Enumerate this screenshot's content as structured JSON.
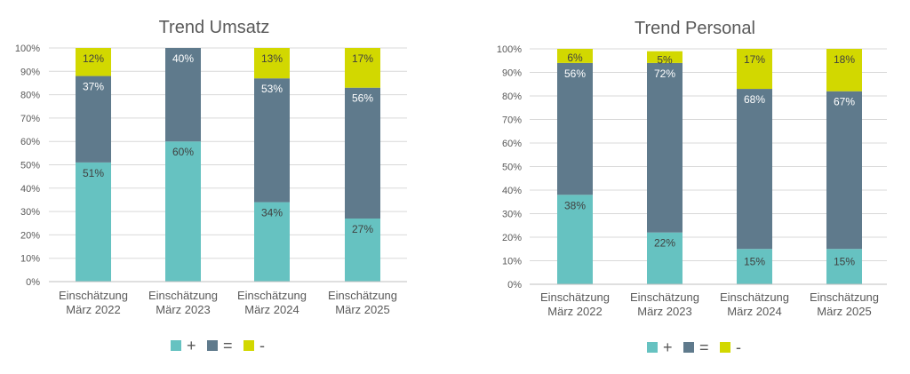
{
  "chart_data": [
    {
      "type": "bar",
      "stacked": true,
      "title": "Trend Umsatz",
      "categories": [
        [
          "Einschätzung",
          "März 2022"
        ],
        [
          "Einschätzung",
          "März 2023"
        ],
        [
          "Einschätzung",
          "März 2024"
        ],
        [
          "Einschätzung",
          "März 2025"
        ]
      ],
      "series": [
        {
          "name": "+",
          "color": "#66c2c1",
          "values": [
            51,
            60,
            34,
            27
          ]
        },
        {
          "name": "=",
          "color": "#5f7a8c",
          "values": [
            37,
            40,
            53,
            56
          ]
        },
        {
          "name": "-",
          "color": "#d2d800",
          "values": [
            12,
            0,
            13,
            17
          ]
        }
      ],
      "data_labels": [
        [
          "51%",
          "37%",
          "12%"
        ],
        [
          "60%",
          "40%",
          ""
        ],
        [
          "34%",
          "53%",
          "13%"
        ],
        [
          "27%",
          "56%",
          "17%"
        ]
      ],
      "yticks": [
        "0%",
        "10%",
        "20%",
        "30%",
        "40%",
        "50%",
        "60%",
        "70%",
        "80%",
        "90%",
        "100%"
      ],
      "ylim": [
        0,
        100
      ],
      "grid": true,
      "legend": "bottom"
    },
    {
      "type": "bar",
      "stacked": true,
      "title": "Trend Personal",
      "categories": [
        [
          "Einschätzung",
          "März 2022"
        ],
        [
          "Einschätzung",
          "März 2023"
        ],
        [
          "Einschätzung",
          "März 2024"
        ],
        [
          "Einschätzung",
          "März 2025"
        ]
      ],
      "series": [
        {
          "name": "+",
          "color": "#66c2c1",
          "values": [
            38,
            22,
            15,
            15
          ]
        },
        {
          "name": "=",
          "color": "#5f7a8c",
          "values": [
            56,
            72,
            68,
            67
          ]
        },
        {
          "name": "-",
          "color": "#d2d800",
          "values": [
            6,
            5,
            17,
            18
          ]
        }
      ],
      "data_labels": [
        [
          "38%",
          "56%",
          "6%"
        ],
        [
          "22%",
          "72%",
          "5%"
        ],
        [
          "15%",
          "68%",
          "17%"
        ],
        [
          "15%",
          "67%",
          "18%"
        ]
      ],
      "yticks": [
        "0%",
        "10%",
        "20%",
        "30%",
        "40%",
        "50%",
        "60%",
        "70%",
        "80%",
        "90%",
        "100%"
      ],
      "ylim": [
        0,
        100
      ],
      "grid": true,
      "legend": "bottom"
    }
  ]
}
